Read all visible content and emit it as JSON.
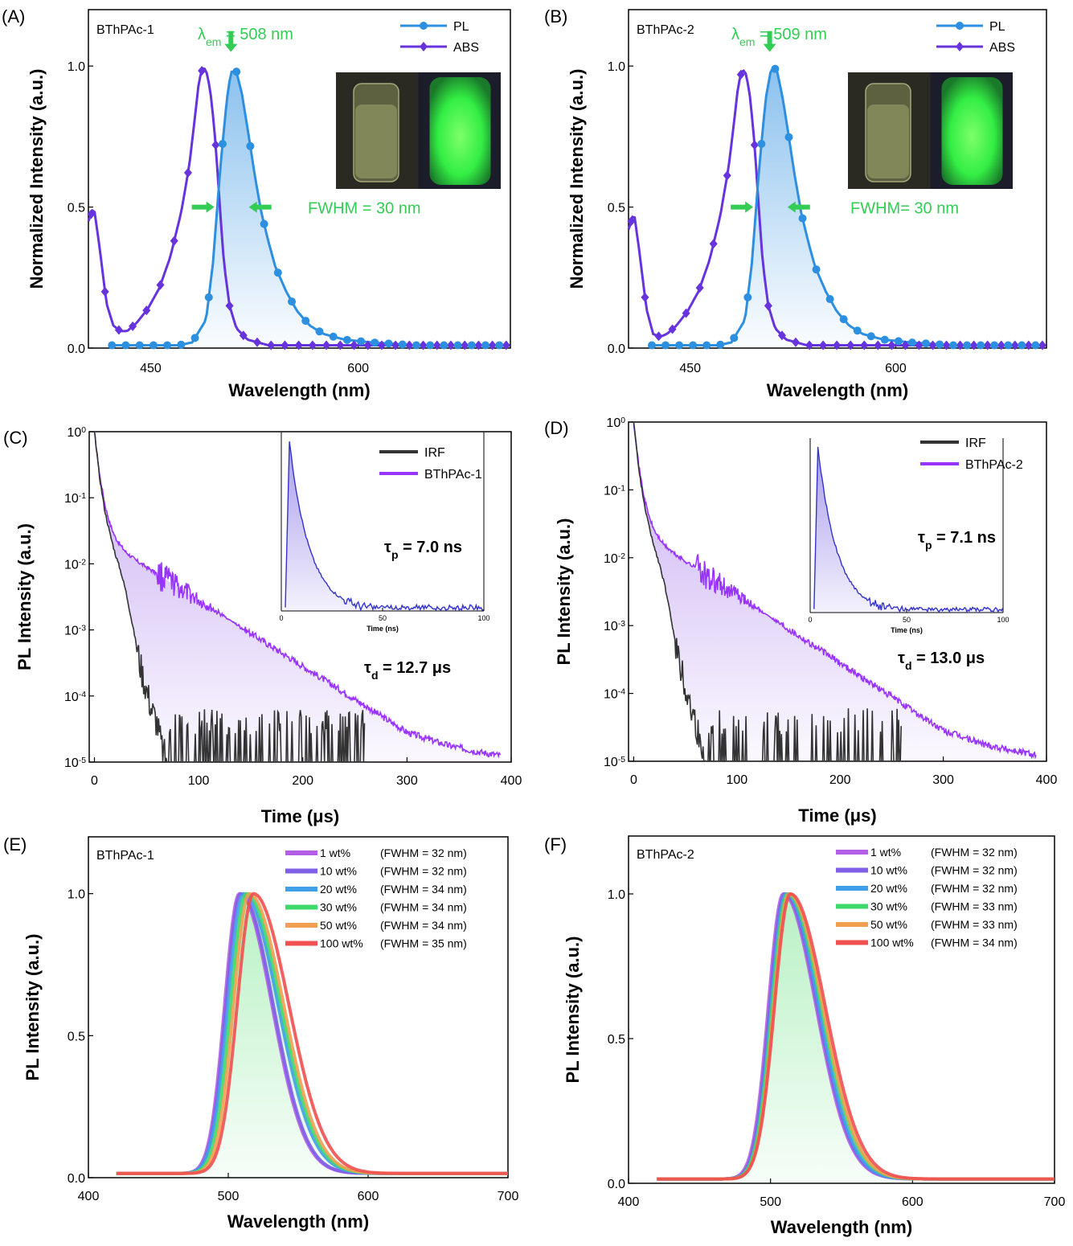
{
  "chart_data": [
    {
      "panel": "(A)",
      "type": "line",
      "sample_label": "BThPAc-1",
      "xlabel": "Wavelength (nm)",
      "ylabel": "Normalized Intensity (a.u.)",
      "xlim": [
        405,
        710
      ],
      "ylim": [
        0,
        1.2
      ],
      "xticks": [
        "450",
        "600"
      ],
      "yticks": [
        "0.0",
        "0.5",
        "1.0"
      ],
      "annotation_em_prefix": "λ",
      "annotation_em_sub": "em",
      "annotation_em_value": " = 508 nm",
      "annotation_fwhm": "FWHM = 30 nm",
      "legend": [
        "PL",
        "ABS"
      ],
      "series": [
        {
          "name": "PL",
          "x": [
            420,
            440,
            460,
            470,
            480,
            490,
            495,
            500,
            505,
            508,
            512,
            516,
            520,
            525,
            530,
            535,
            540,
            548,
            556,
            565,
            575,
            590,
            610,
            640,
            710
          ],
          "values": [
            0.01,
            0.01,
            0.01,
            0.01,
            0.02,
            0.1,
            0.3,
            0.62,
            0.88,
            0.98,
            0.98,
            0.9,
            0.78,
            0.62,
            0.48,
            0.38,
            0.29,
            0.2,
            0.13,
            0.08,
            0.05,
            0.03,
            0.02,
            0.01,
            0.01
          ]
        },
        {
          "name": "ABS",
          "x": [
            405,
            409,
            413,
            418,
            423,
            428,
            433,
            440,
            448,
            456,
            464,
            472,
            478,
            482,
            485,
            488,
            491,
            494,
            497,
            500,
            503,
            507,
            512,
            520,
            535,
            560,
            600,
            650,
            710
          ],
          "values": [
            0.45,
            0.5,
            0.36,
            0.16,
            0.08,
            0.06,
            0.06,
            0.09,
            0.14,
            0.21,
            0.32,
            0.48,
            0.65,
            0.82,
            0.95,
            1.0,
            0.97,
            0.88,
            0.72,
            0.5,
            0.3,
            0.15,
            0.07,
            0.03,
            0.01,
            0.01,
            0.01,
            0.01,
            0.01
          ]
        }
      ]
    },
    {
      "panel": "(B)",
      "type": "line",
      "sample_label": "BThPAc-2",
      "xlabel": "Wavelength (nm)",
      "ylabel": "Normalized Intensity (a.u.)",
      "xlim": [
        405,
        710
      ],
      "ylim": [
        0,
        1.2
      ],
      "xticks": [
        "450",
        "600"
      ],
      "yticks": [
        "0.0",
        "0.5",
        "1.0"
      ],
      "annotation_em_prefix": "λ",
      "annotation_em_sub": "em",
      "annotation_em_value": " = 509 nm",
      "annotation_fwhm": "FWHM= 30 nm",
      "legend": [
        "PL",
        "ABS"
      ],
      "series": [
        {
          "name": "PL",
          "x": [
            420,
            440,
            460,
            470,
            480,
            490,
            495,
            500,
            505,
            509,
            513,
            517,
            521,
            526,
            531,
            536,
            541,
            549,
            557,
            566,
            576,
            591,
            611,
            641,
            710
          ],
          "values": [
            0.01,
            0.01,
            0.01,
            0.01,
            0.02,
            0.1,
            0.3,
            0.62,
            0.88,
            0.99,
            0.99,
            0.9,
            0.78,
            0.62,
            0.48,
            0.38,
            0.29,
            0.2,
            0.13,
            0.08,
            0.05,
            0.03,
            0.02,
            0.01,
            0.01
          ]
        },
        {
          "name": "ABS",
          "x": [
            405,
            409,
            413,
            418,
            423,
            428,
            433,
            440,
            448,
            456,
            464,
            472,
            478,
            482,
            485,
            488,
            491,
            494,
            497,
            500,
            503,
            507,
            512,
            520,
            535,
            560,
            600,
            650,
            710
          ],
          "values": [
            0.42,
            0.48,
            0.34,
            0.14,
            0.05,
            0.04,
            0.05,
            0.08,
            0.13,
            0.2,
            0.31,
            0.47,
            0.64,
            0.8,
            0.93,
            0.99,
            0.97,
            0.88,
            0.72,
            0.5,
            0.3,
            0.15,
            0.07,
            0.03,
            0.01,
            0.01,
            0.01,
            0.01,
            0.01
          ]
        }
      ]
    },
    {
      "panel": "(C)",
      "type": "line",
      "yscale": "log",
      "xlabel": "Time (μs)",
      "ylabel": "PL Intensity (a.u.)",
      "xlim": [
        -5,
        400
      ],
      "ylim_exp": [
        -5,
        0
      ],
      "xticks": [
        0,
        100,
        200,
        300,
        400
      ],
      "legend": [
        "IRF",
        "BThPAc-1"
      ],
      "tau_p_label": "τ",
      "tau_p_sub": "p",
      "tau_p_value": " = 7.0 ns",
      "tau_d_label": "τ",
      "tau_d_sub": "d",
      "tau_d_value": " = 12.7 μs",
      "inset": {
        "xlabel": "Time (ns)",
        "xticks": [
          0,
          50,
          100
        ],
        "peak": 0.95,
        "decay_ns": 10
      },
      "series": [
        {
          "name": "IRF",
          "x": [
            0,
            5,
            10,
            15,
            20,
            25,
            30,
            35,
            40,
            45,
            50,
            55,
            60,
            65,
            70
          ],
          "log10": [
            0,
            -0.7,
            -1.2,
            -1.55,
            -1.85,
            -2.1,
            -2.4,
            -2.8,
            -3.2,
            -3.6,
            -3.9,
            -4.2,
            -4.4,
            -4.8,
            -5
          ]
        },
        {
          "name": "BThPAc-1",
          "x": [
            0,
            5,
            10,
            15,
            20,
            25,
            30,
            40,
            50,
            60,
            80,
            100,
            120,
            150,
            180,
            200,
            220,
            250,
            280,
            300,
            340,
            370,
            390
          ],
          "log10": [
            0,
            -0.65,
            -1.1,
            -1.4,
            -1.6,
            -1.72,
            -1.82,
            -1.95,
            -2.05,
            -2.15,
            -2.35,
            -2.55,
            -2.75,
            -3.05,
            -3.35,
            -3.55,
            -3.75,
            -4.05,
            -4.35,
            -4.55,
            -4.75,
            -4.85,
            -4.9
          ]
        }
      ]
    },
    {
      "panel": "(D)",
      "type": "line",
      "yscale": "log",
      "xlabel": "Time (μs)",
      "ylabel": "PL Intensity (a.u.)",
      "xlim": [
        -5,
        400
      ],
      "ylim_exp": [
        -5,
        0
      ],
      "xticks": [
        0,
        100,
        200,
        300,
        400
      ],
      "legend": [
        "IRF",
        "BThPAc-2"
      ],
      "tau_p_label": "τ",
      "tau_p_sub": "p",
      "tau_p_value": " = 7.1 ns",
      "tau_d_label": "τ",
      "tau_d_sub": "d",
      "tau_d_value": " = 13.0 μs",
      "inset": {
        "xlabel": "Time (ns)",
        "xticks": [
          0,
          50,
          100
        ],
        "peak": 0.95,
        "decay_ns": 10
      },
      "series": [
        {
          "name": "IRF",
          "x": [
            0,
            5,
            10,
            15,
            20,
            25,
            30,
            35,
            40,
            45,
            50,
            55,
            60,
            65,
            70
          ],
          "log10": [
            0,
            -0.7,
            -1.2,
            -1.55,
            -1.85,
            -2.1,
            -2.4,
            -2.8,
            -3.2,
            -3.6,
            -3.9,
            -4.2,
            -4.4,
            -4.8,
            -5
          ]
        },
        {
          "name": "BThPAc-2",
          "x": [
            0,
            5,
            10,
            15,
            20,
            25,
            30,
            40,
            50,
            60,
            80,
            100,
            120,
            150,
            180,
            200,
            220,
            250,
            280,
            300,
            340,
            370,
            390
          ],
          "log10": [
            0,
            -0.65,
            -1.1,
            -1.4,
            -1.6,
            -1.72,
            -1.82,
            -1.95,
            -2.05,
            -2.15,
            -2.35,
            -2.55,
            -2.75,
            -3.05,
            -3.35,
            -3.55,
            -3.75,
            -4.05,
            -4.35,
            -4.55,
            -4.75,
            -4.85,
            -4.9
          ]
        }
      ]
    },
    {
      "panel": "(E)",
      "type": "line",
      "sample_label": "BThPAc-1",
      "xlabel": "Wavelength (nm)",
      "ylabel": "PL Intensity (a.u.)",
      "xlim": [
        400,
        700
      ],
      "ylim": [
        0,
        1.2
      ],
      "xticks": [
        400,
        500,
        600,
        700
      ],
      "yticks": [
        "0.0",
        "0.5",
        "1.0"
      ],
      "series": [
        {
          "name": "1 wt%",
          "fwhm": "(FWHM = 32 nm)",
          "peak": 508,
          "width": 32,
          "color": "#b45ee8"
        },
        {
          "name": "10 wt%",
          "fwhm": "(FWHM = 32 nm)",
          "peak": 509,
          "width": 32,
          "color": "#7f5fe6"
        },
        {
          "name": "20 wt%",
          "fwhm": "(FWHM = 34 nm)",
          "peak": 511,
          "width": 34,
          "color": "#3f9fe8"
        },
        {
          "name": "30 wt%",
          "fwhm": "(FWHM = 34 nm)",
          "peak": 513,
          "width": 34,
          "color": "#3fd86a"
        },
        {
          "name": "50 wt%",
          "fwhm": "(FWHM = 34 nm)",
          "peak": 515,
          "width": 34,
          "color": "#f0a050"
        },
        {
          "name": "100 wt%",
          "fwhm": "(FWHM = 35 nm)",
          "peak": 518,
          "width": 35,
          "color": "#f05050"
        }
      ]
    },
    {
      "panel": "(F)",
      "type": "line",
      "sample_label": "BThPAc-2",
      "xlabel": "Wavelength (nm)",
      "ylabel": "PL Intensity (a.u.)",
      "xlim": [
        400,
        700
      ],
      "ylim": [
        0,
        1.2
      ],
      "xticks": [
        400,
        500,
        600,
        700
      ],
      "yticks": [
        "0.0",
        "0.5",
        "1.0"
      ],
      "series": [
        {
          "name": "1 wt%",
          "fwhm": "(FWHM = 32 nm)",
          "peak": 509,
          "width": 32,
          "color": "#b45ee8"
        },
        {
          "name": "10 wt%",
          "fwhm": "(FWHM = 32 nm)",
          "peak": 510,
          "width": 32,
          "color": "#7f5fe6"
        },
        {
          "name": "20 wt%",
          "fwhm": "(FWHM = 32 nm)",
          "peak": 511,
          "width": 32,
          "color": "#3f9fe8"
        },
        {
          "name": "30 wt%",
          "fwhm": "(FWHM = 33 nm)",
          "peak": 512,
          "width": 33,
          "color": "#3fd86a"
        },
        {
          "name": "50 wt%",
          "fwhm": "(FWHM = 33 nm)",
          "peak": 513,
          "width": 33,
          "color": "#f0a050"
        },
        {
          "name": "100 wt%",
          "fwhm": "(FWHM = 34 nm)",
          "peak": 514,
          "width": 34,
          "color": "#f05050"
        }
      ]
    }
  ],
  "colors": {
    "pl": "#2d8fe0",
    "abs": "#6633dd",
    "annotation_green": "#33cc55",
    "irf": "#333333",
    "decay": "#9933ff",
    "inset": "#3333cc"
  }
}
